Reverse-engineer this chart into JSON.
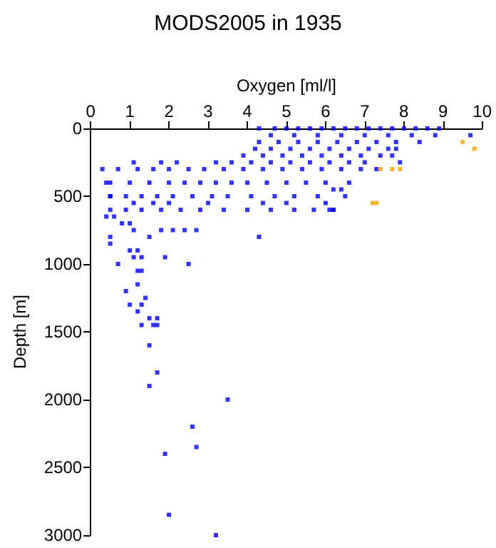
{
  "chart_data": {
    "type": "scatter",
    "title": "MODS2005 in 1935",
    "xlabel": "Oxygen [ml/l]",
    "ylabel": "Depth [m]",
    "xlim": [
      0,
      10
    ],
    "xticks": [
      0,
      1,
      2,
      3,
      4,
      5,
      6,
      7,
      8,
      9,
      10
    ],
    "ylim": [
      3000,
      0
    ],
    "yticks": [
      0,
      500,
      1000,
      1500,
      2000,
      2500,
      3000
    ],
    "grid": false,
    "marker": "square",
    "series": [
      {
        "color": "#0000ff",
        "x": [
          4.3,
          4.7,
          5.0,
          5.3,
          5.6,
          5.9,
          6.2,
          6.5,
          6.8,
          7.1,
          7.4,
          7.7,
          8.0,
          8.3,
          8.6,
          8.9,
          4.6,
          5.2,
          5.8,
          6.4,
          7.0,
          7.6,
          8.2,
          8.8,
          9.7,
          4.3,
          4.8,
          5.3,
          5.8,
          6.3,
          6.8,
          7.3,
          7.8,
          8.4,
          4.2,
          4.6,
          5.1,
          5.6,
          6.1,
          6.6,
          7.1,
          7.6,
          7.8,
          3.9,
          4.4,
          4.9,
          5.4,
          5.9,
          6.4,
          6.9,
          7.4,
          7.7,
          1.1,
          1.8,
          2.2,
          3.2,
          3.6,
          4.1,
          4.6,
          5.1,
          5.6,
          6.1,
          6.6,
          7.0,
          7.9,
          0.7,
          1.2,
          1.6,
          2.0,
          2.5,
          2.9,
          3.4,
          3.9,
          4.4,
          4.9,
          5.4,
          5.9,
          6.4,
          6.9,
          7.3,
          0.5,
          1.0,
          1.5,
          2.0,
          2.4,
          2.8,
          3.2,
          3.6,
          4.0,
          4.5,
          5.0,
          5.5,
          6.0,
          6.6,
          0.5,
          0.9,
          1.3,
          1.7,
          2.1,
          2.6,
          3.1,
          3.5,
          4.1,
          4.7,
          5.2,
          5.8,
          6.5,
          1.1,
          1.6,
          2.0,
          3.0,
          4.4,
          5.0,
          6.0,
          0.5,
          0.9,
          1.3,
          1.8,
          2.3,
          2.8,
          3.4,
          4.0,
          4.6,
          5.2,
          5.7,
          6.2,
          0.3,
          0.4,
          0.5,
          0.4,
          0.6,
          0.8,
          0.5,
          0.5,
          0.7,
          1.0,
          1.1,
          1.2,
          1.0,
          1.1,
          1.3,
          1.2,
          1.3,
          1.2,
          0.9,
          1.4,
          1.0,
          1.2,
          1.3,
          1.7,
          1.5,
          1.3,
          1.6,
          1.7,
          1.5,
          1.5,
          1.8,
          1.9,
          2.1,
          2.4,
          2.5,
          2.7,
          4.3,
          6.2,
          6.1,
          6.2,
          6.4,
          1.7,
          1.5,
          3.5,
          2.6,
          2.7,
          1.9,
          2.0,
          3.2
        ],
        "values": [
          0,
          0,
          0,
          0,
          0,
          0,
          0,
          0,
          0,
          0,
          0,
          0,
          0,
          0,
          0,
          0,
          50,
          50,
          50,
          50,
          50,
          50,
          50,
          50,
          50,
          100,
          100,
          100,
          100,
          100,
          100,
          100,
          100,
          100,
          150,
          150,
          150,
          150,
          150,
          150,
          150,
          150,
          150,
          200,
          200,
          200,
          200,
          200,
          200,
          200,
          200,
          200,
          250,
          250,
          250,
          250,
          250,
          250,
          250,
          250,
          250,
          250,
          250,
          250,
          250,
          300,
          300,
          300,
          300,
          300,
          300,
          300,
          300,
          300,
          300,
          300,
          300,
          300,
          300,
          300,
          400,
          400,
          400,
          400,
          400,
          400,
          400,
          400,
          400,
          400,
          400,
          400,
          400,
          400,
          500,
          500,
          500,
          500,
          500,
          500,
          500,
          500,
          500,
          500,
          500,
          500,
          500,
          550,
          550,
          550,
          550,
          550,
          550,
          550,
          600,
          600,
          600,
          600,
          600,
          600,
          600,
          600,
          600,
          600,
          600,
          600,
          300,
          400,
          500,
          650,
          650,
          700,
          800,
          850,
          1000,
          700,
          750,
          900,
          900,
          950,
          950,
          1050,
          1050,
          1150,
          1200,
          1250,
          1300,
          1350,
          1300,
          1400,
          1400,
          1450,
          1450,
          1450,
          1600,
          800,
          750,
          950,
          750,
          750,
          1000,
          750,
          800,
          600,
          600,
          450,
          450,
          1800,
          1900,
          2000,
          2200,
          2350,
          2400,
          2850,
          3000
        ]
      },
      {
        "color": "#ffa500",
        "x": [
          9.5,
          9.8,
          7.4,
          7.7,
          7.9,
          7.2,
          7.3
        ],
        "values": [
          100,
          150,
          300,
          300,
          300,
          550,
          550
        ]
      }
    ]
  }
}
